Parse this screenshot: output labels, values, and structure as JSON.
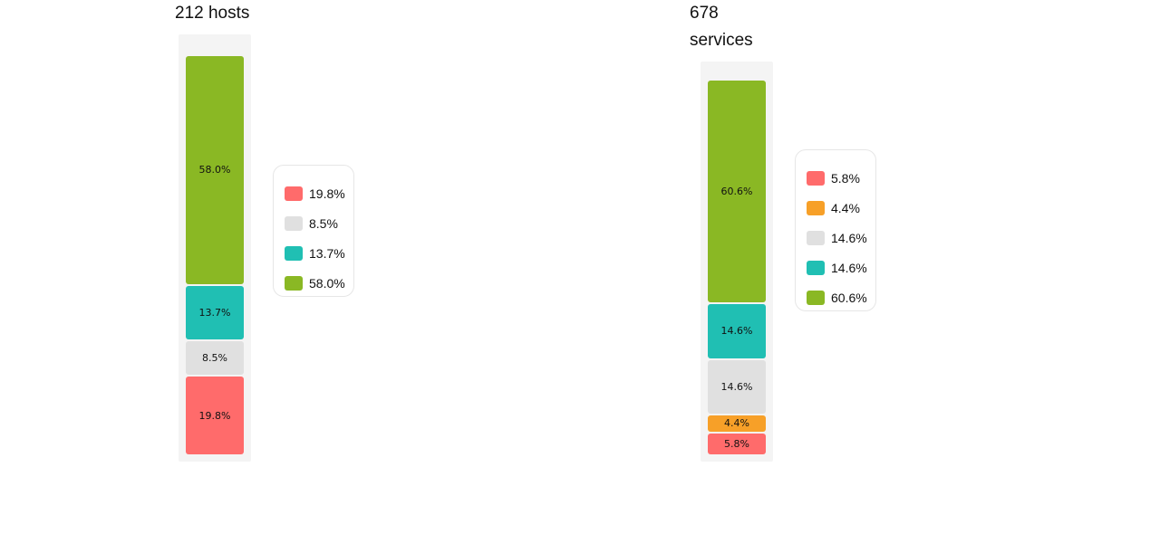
{
  "colors": {
    "critical": "#ff6b6b",
    "warning": "#f7a028",
    "unknown": "#e0e0e0",
    "ok_teal": "#20bfb3",
    "ok_green": "#8ab824"
  },
  "hosts": {
    "title": "212 hosts"
  },
  "services": {
    "title_line1": "678",
    "title_line2": "services"
  },
  "chart_data": [
    {
      "type": "bar",
      "stacked": true,
      "title": "212 hosts",
      "series": [
        {
          "value": 19.8,
          "label": "19.8%",
          "color": "#ff6b6b"
        },
        {
          "value": 8.5,
          "label": "8.5%",
          "color": "#e0e0e0"
        },
        {
          "value": 13.7,
          "label": "13.7%",
          "color": "#20bfb3"
        },
        {
          "value": 58.0,
          "label": "58.0%",
          "color": "#8ab824"
        }
      ],
      "legend": [
        "19.8%",
        "8.5%",
        "13.7%",
        "58.0%"
      ]
    },
    {
      "type": "bar",
      "stacked": true,
      "title": "678 services",
      "series": [
        {
          "value": 5.8,
          "label": "5.8%",
          "color": "#ff6b6b"
        },
        {
          "value": 4.4,
          "label": "4.4%",
          "color": "#f7a028"
        },
        {
          "value": 14.6,
          "label": "14.6%",
          "color": "#e0e0e0"
        },
        {
          "value": 14.6,
          "label": "14.6%",
          "color": "#20bfb3"
        },
        {
          "value": 60.6,
          "label": "60.6%",
          "color": "#8ab824"
        }
      ],
      "legend": [
        "5.8%",
        "4.4%",
        "14.6%",
        "14.6%",
        "60.6%"
      ]
    }
  ]
}
